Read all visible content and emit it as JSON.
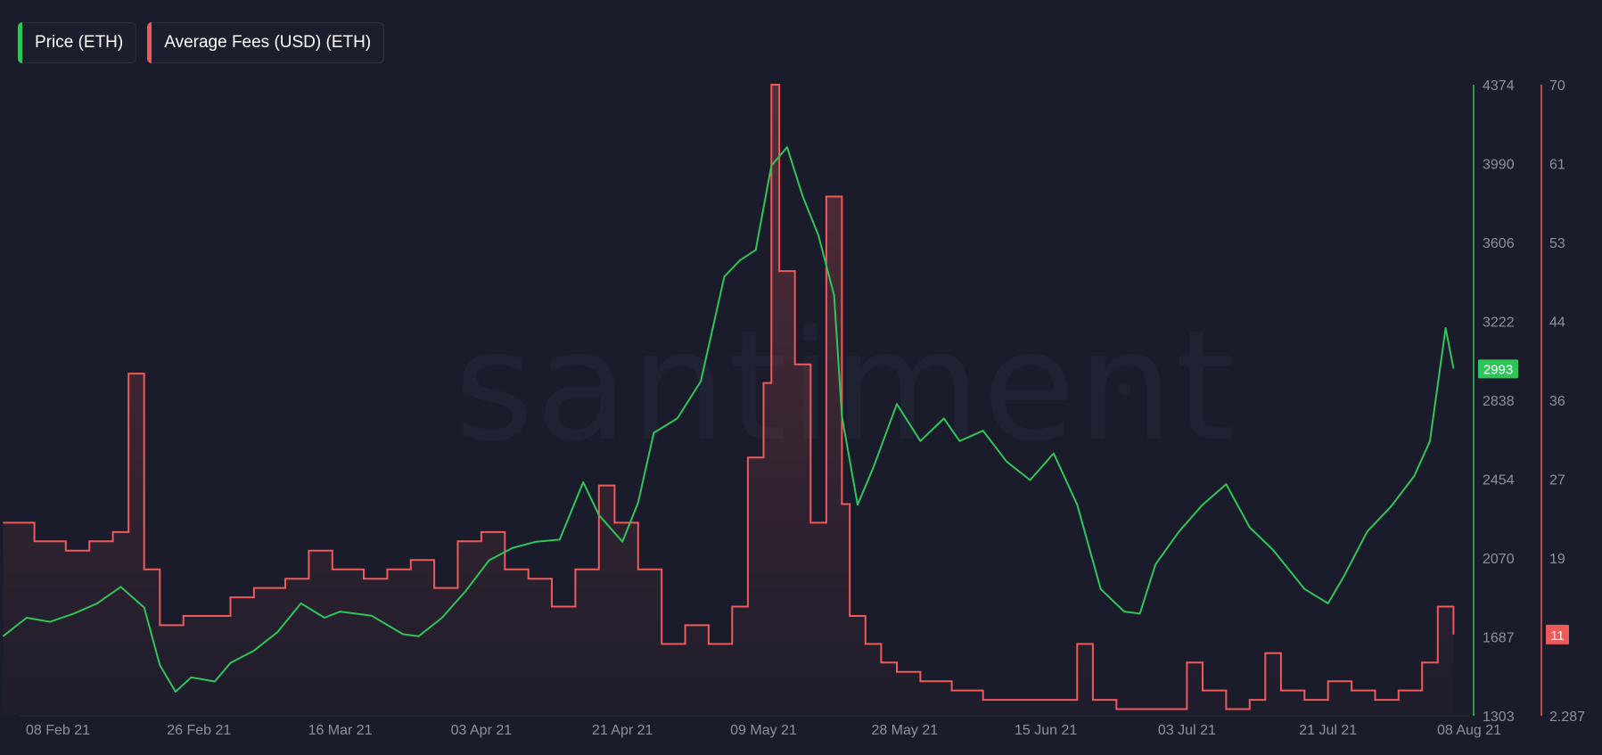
{
  "legend": [
    {
      "label": "Price (ETH)",
      "color": "#2fc559"
    },
    {
      "label": "Average Fees (USD) (ETH)",
      "color": "#ee5a5a"
    }
  ],
  "watermark": "santiment",
  "chart_data": {
    "type": "line",
    "x_ticks": [
      "08 Feb 21",
      "26 Feb 21",
      "16 Mar 21",
      "03 Apr 21",
      "21 Apr 21",
      "09 May 21",
      "28 May 21",
      "15 Jun 21",
      "03 Jul 21",
      "21 Jul 21",
      "08 Aug 21"
    ],
    "price_axis": {
      "ticks": [
        "4374",
        "3990",
        "3606",
        "3222",
        "2838",
        "2454",
        "2070",
        "1687",
        "1303"
      ],
      "ylim": [
        1303,
        4374
      ],
      "color": "#2fc559"
    },
    "fees_axis": {
      "ticks": [
        "70",
        "61",
        "53",
        "44",
        "36",
        "27",
        "19",
        "10",
        "2.287"
      ],
      "ylim": [
        2.287,
        70
      ],
      "color": "#ee5a5a"
    },
    "series": [
      {
        "name": "Price (ETH)",
        "axis": "price",
        "color": "#2fc559",
        "last_value_label": "2993",
        "x": [
          "2021-02-01",
          "2021-02-04",
          "2021-02-07",
          "2021-02-10",
          "2021-02-13",
          "2021-02-16",
          "2021-02-19",
          "2021-02-21",
          "2021-02-23",
          "2021-02-25",
          "2021-02-28",
          "2021-03-02",
          "2021-03-05",
          "2021-03-08",
          "2021-03-11",
          "2021-03-14",
          "2021-03-16",
          "2021-03-20",
          "2021-03-24",
          "2021-03-26",
          "2021-03-29",
          "2021-04-01",
          "2021-04-04",
          "2021-04-07",
          "2021-04-10",
          "2021-04-13",
          "2021-04-16",
          "2021-04-18",
          "2021-04-21",
          "2021-04-23",
          "2021-04-25",
          "2021-04-28",
          "2021-05-01",
          "2021-05-04",
          "2021-05-06",
          "2021-05-08",
          "2021-05-10",
          "2021-05-12",
          "2021-05-14",
          "2021-05-16",
          "2021-05-18",
          "2021-05-19",
          "2021-05-21",
          "2021-05-23",
          "2021-05-26",
          "2021-05-29",
          "2021-06-01",
          "2021-06-03",
          "2021-06-06",
          "2021-06-09",
          "2021-06-12",
          "2021-06-15",
          "2021-06-18",
          "2021-06-21",
          "2021-06-24",
          "2021-06-26",
          "2021-06-28",
          "2021-07-01",
          "2021-07-04",
          "2021-07-07",
          "2021-07-10",
          "2021-07-13",
          "2021-07-17",
          "2021-07-20",
          "2021-07-22",
          "2021-07-25",
          "2021-07-28",
          "2021-07-31",
          "2021-08-02",
          "2021-08-04",
          "2021-08-05"
        ],
        "values": [
          1690,
          1780,
          1760,
          1800,
          1850,
          1930,
          1830,
          1550,
          1420,
          1490,
          1470,
          1560,
          1620,
          1710,
          1850,
          1780,
          1810,
          1790,
          1700,
          1690,
          1780,
          1910,
          2060,
          2120,
          2150,
          2160,
          2440,
          2280,
          2150,
          2340,
          2680,
          2750,
          2930,
          3440,
          3520,
          3570,
          3980,
          4070,
          3830,
          3640,
          3350,
          2760,
          2330,
          2510,
          2820,
          2640,
          2750,
          2640,
          2690,
          2540,
          2450,
          2580,
          2330,
          1920,
          1810,
          1800,
          2040,
          2200,
          2330,
          2430,
          2220,
          2110,
          1920,
          1850,
          1980,
          2200,
          2320,
          2470,
          2640,
          3190,
          2993
        ]
      },
      {
        "name": "Average Fees (USD) (ETH)",
        "axis": "fees",
        "color": "#ee5a5a",
        "last_value_label": "11",
        "x": [
          "2021-02-01",
          "2021-02-05",
          "2021-02-09",
          "2021-02-12",
          "2021-02-15",
          "2021-02-17",
          "2021-02-19",
          "2021-02-21",
          "2021-02-24",
          "2021-02-27",
          "2021-03-02",
          "2021-03-05",
          "2021-03-09",
          "2021-03-12",
          "2021-03-15",
          "2021-03-19",
          "2021-03-22",
          "2021-03-25",
          "2021-03-28",
          "2021-03-31",
          "2021-04-03",
          "2021-04-06",
          "2021-04-09",
          "2021-04-12",
          "2021-04-15",
          "2021-04-18",
          "2021-04-20",
          "2021-04-23",
          "2021-04-26",
          "2021-04-29",
          "2021-05-02",
          "2021-05-05",
          "2021-05-07",
          "2021-05-09",
          "2021-05-10",
          "2021-05-11",
          "2021-05-13",
          "2021-05-15",
          "2021-05-17",
          "2021-05-19",
          "2021-05-20",
          "2021-05-22",
          "2021-05-24",
          "2021-05-26",
          "2021-05-29",
          "2021-06-02",
          "2021-06-06",
          "2021-06-10",
          "2021-06-14",
          "2021-06-18",
          "2021-06-20",
          "2021-06-23",
          "2021-06-26",
          "2021-06-29",
          "2021-07-02",
          "2021-07-04",
          "2021-07-07",
          "2021-07-10",
          "2021-07-12",
          "2021-07-14",
          "2021-07-17",
          "2021-07-20",
          "2021-07-23",
          "2021-07-26",
          "2021-07-29",
          "2021-08-01",
          "2021-08-03",
          "2021-08-05"
        ],
        "values": [
          23,
          21,
          20,
          21,
          22,
          39,
          18,
          12,
          13,
          13,
          15,
          16,
          17,
          20,
          18,
          17,
          18,
          19,
          16,
          21,
          22,
          18,
          17,
          14,
          18,
          27,
          23,
          18,
          10,
          12,
          10,
          14,
          30,
          38,
          70,
          50,
          40,
          23,
          58,
          25,
          13,
          10,
          8,
          7,
          6,
          5,
          4,
          4,
          4,
          10,
          4,
          3,
          3,
          3,
          8,
          5,
          3,
          4,
          9,
          5,
          4,
          6,
          5,
          4,
          5,
          8,
          14,
          11
        ]
      }
    ]
  }
}
